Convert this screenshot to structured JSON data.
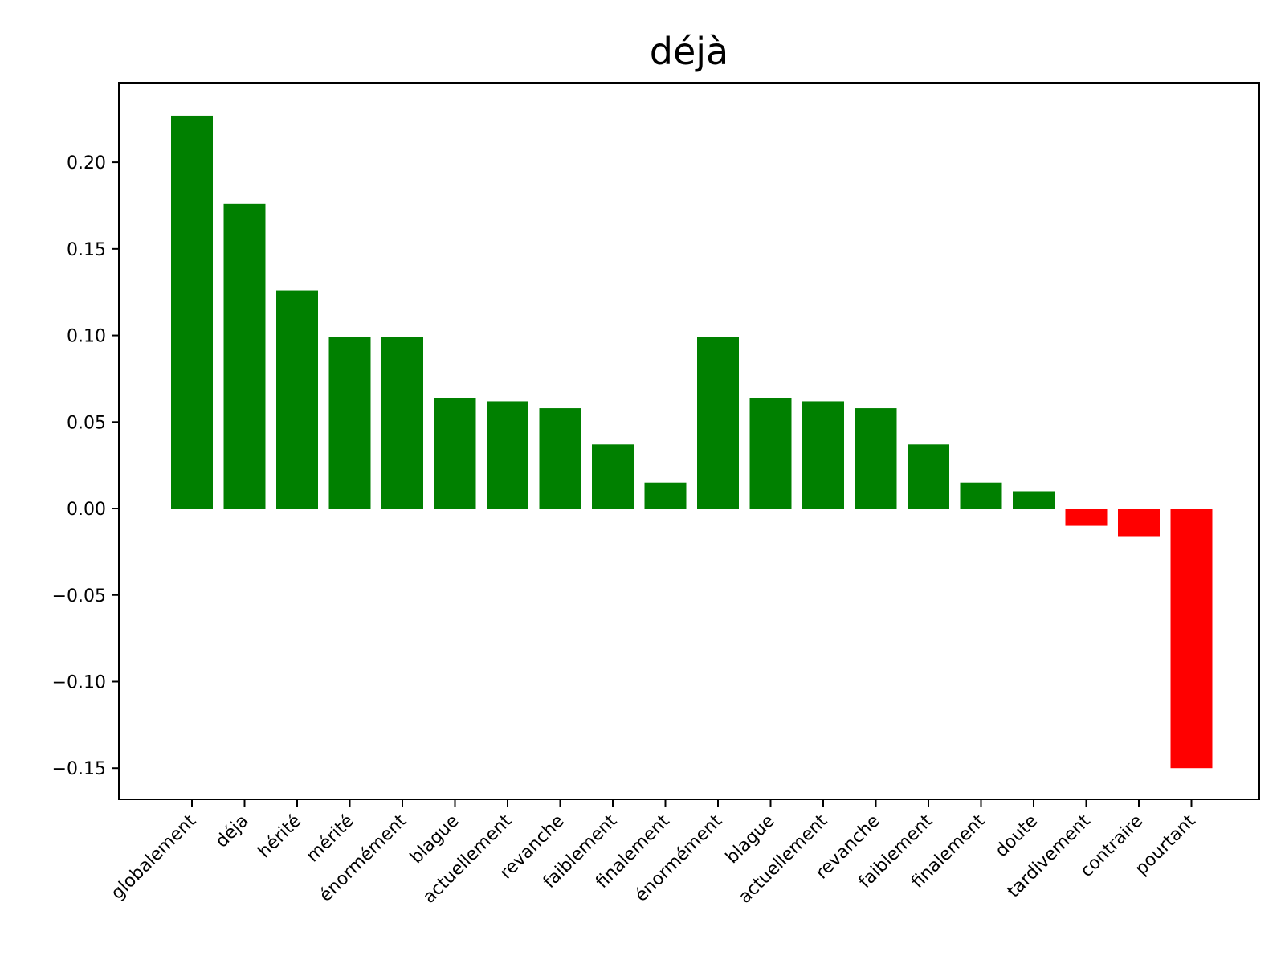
{
  "chart_data": {
    "type": "bar",
    "title": "déjà",
    "xlabel": "",
    "ylabel": "",
    "ylim": [
      -0.168,
      0.246
    ],
    "yticks": [
      -0.15,
      -0.1,
      -0.05,
      0.0,
      0.05,
      0.1,
      0.15,
      0.2
    ],
    "ytick_labels": [
      "−0.15",
      "−0.10",
      "−0.05",
      "0.00",
      "0.05",
      "0.10",
      "0.15",
      "0.20"
    ],
    "grid": false,
    "colors": {
      "positive": "#008000",
      "negative": "#ff0000"
    },
    "categories": [
      "globalement",
      "déja",
      "hérité",
      "mérité",
      "énormément",
      "blague",
      "actuellement",
      "revanche",
      "faiblement",
      "finalement",
      "énormément",
      "blague",
      "actuellement",
      "revanche",
      "faiblement",
      "finalement",
      "doute",
      "tardivement",
      "contraire",
      "pourtant"
    ],
    "values": [
      0.227,
      0.176,
      0.126,
      0.099,
      0.099,
      0.064,
      0.062,
      0.058,
      0.037,
      0.015,
      0.099,
      0.064,
      0.062,
      0.058,
      0.037,
      0.015,
      0.01,
      -0.01,
      -0.016,
      -0.15
    ]
  }
}
